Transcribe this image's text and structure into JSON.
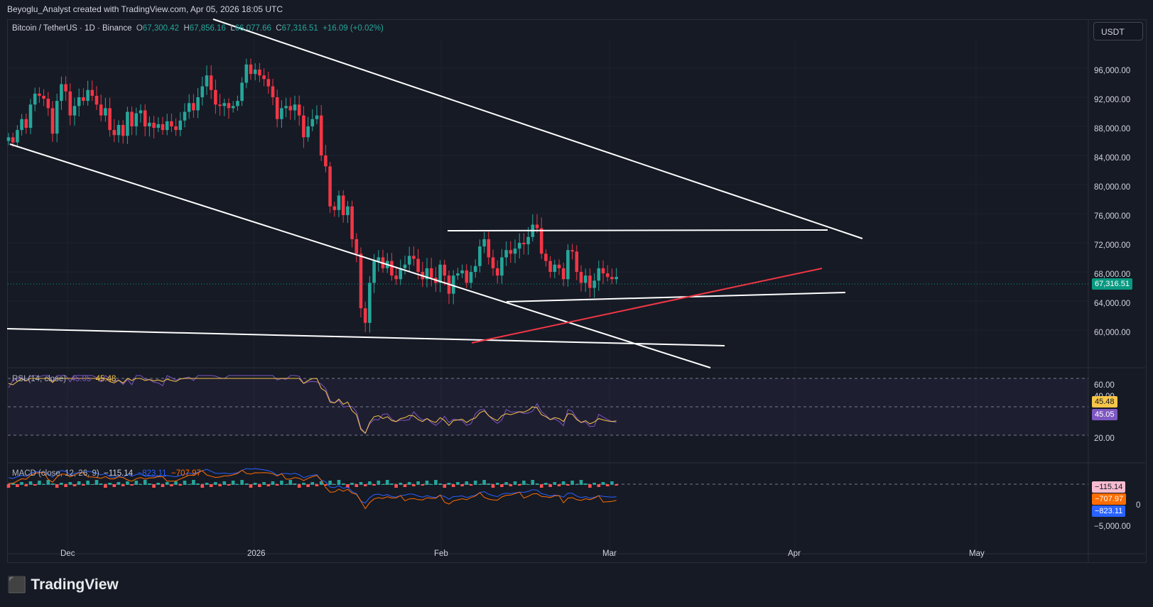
{
  "header": {
    "attribution": "Beyoglu_Analyst created with TradingView.com, Apr 05, 2026 18:05 UTC"
  },
  "symbol": {
    "name": "Bitcoin / TetherUS · 1D · Binance",
    "open_label": "O",
    "open": "67,300.42",
    "high_label": "H",
    "high": "67,856.16",
    "low_label": "L",
    "low": "66,077.66",
    "close_label": "C",
    "close": "67,316.51",
    "change": "+16.09 (+0.02%)"
  },
  "currency_button": "USDT",
  "price_axis": {
    "ticks": [
      "96,000.00",
      "92,000.00",
      "88,000.00",
      "84,000.00",
      "80,000.00",
      "76,000.00",
      "72,000.00",
      "68,000.00",
      "64,000.00",
      "60,000.00"
    ],
    "last_price": "67,316.51"
  },
  "time_axis": {
    "labels": [
      "Dec",
      "2026",
      "Feb",
      "Mar",
      "Apr",
      "May"
    ]
  },
  "rsi": {
    "label": "RSI (14, close)",
    "value": "45.05",
    "ma_value": "45.48",
    "ticks": [
      "60.00",
      "40.00",
      "20.00"
    ],
    "tag_ma": "45.48",
    "tag_rsi": "45.05"
  },
  "macd": {
    "label": "MACD (close, 12, 26, 9)",
    "hist": "−115.14",
    "macd": "−823.11",
    "signal": "−707.97",
    "ticks": [
      "0",
      "−5,000.00"
    ],
    "tag_hist": "−115.14",
    "tag_signal": "−707.97",
    "tag_macd": "−823.11"
  },
  "colors": {
    "up": "#26A69A",
    "down": "#F23645",
    "rsi": "#7E57C2",
    "rsi_ma": "#F7C548",
    "macd": "#2962FF",
    "signal": "#FF6D00",
    "trendline_red": "#F23645",
    "trendline": "#FFFFFF"
  },
  "brand": "TradingView"
}
